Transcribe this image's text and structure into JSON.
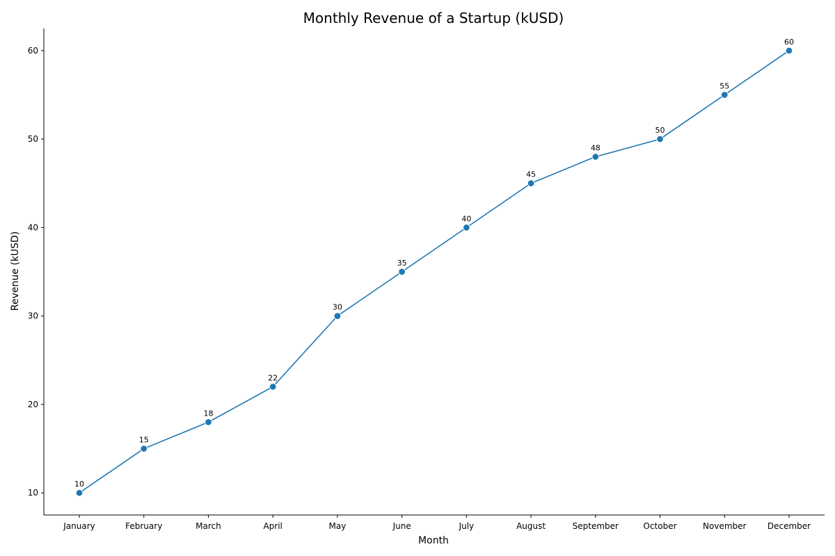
{
  "chart_data": {
    "type": "line",
    "title": "Monthly Revenue of a Startup (kUSD)",
    "xlabel": "Month",
    "ylabel": "Revenue (kUSD)",
    "categories": [
      "January",
      "February",
      "March",
      "April",
      "May",
      "June",
      "July",
      "August",
      "September",
      "October",
      "November",
      "December"
    ],
    "series": [
      {
        "values": [
          10,
          15,
          18,
          22,
          30,
          35,
          40,
          45,
          48,
          50,
          55,
          60
        ],
        "color": "#1f77b4"
      }
    ],
    "data_labels": [
      "10",
      "15",
      "18",
      "22",
      "30",
      "35",
      "40",
      "45",
      "48",
      "50",
      "55",
      "60"
    ],
    "yticks": [
      10,
      20,
      30,
      40,
      50,
      60
    ],
    "ylim": [
      7.5,
      62.5
    ],
    "grid": false,
    "legend": "none",
    "colors": {
      "line": "#1f77b4",
      "axis": "#000000",
      "text": "#000000",
      "background": "#ffffff"
    }
  }
}
